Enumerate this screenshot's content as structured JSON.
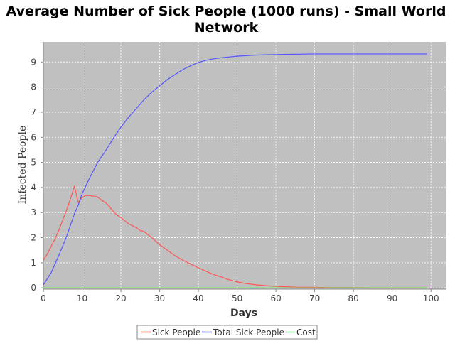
{
  "chart_data": {
    "type": "line",
    "title_lines": [
      "Average Number of Sick People (1000 runs) - Small World",
      "Network"
    ],
    "xlabel": "Days",
    "ylabel": "Infected People",
    "xlim": [
      0,
      104
    ],
    "ylim": [
      -0.05,
      9.8
    ],
    "xticks": [
      0,
      10,
      20,
      30,
      40,
      50,
      60,
      70,
      80,
      90,
      100
    ],
    "yticks": [
      0,
      1,
      2,
      3,
      4,
      5,
      6,
      7,
      8,
      9
    ],
    "grid": true,
    "legend_position": "bottom",
    "plot_background": "#c0c0c0",
    "series": [
      {
        "name": "Sick People",
        "color": "#ff5555",
        "x": [
          0,
          1,
          2,
          3,
          4,
          5,
          6,
          7,
          8,
          9,
          10,
          11,
          12,
          13,
          14,
          15,
          16,
          17,
          18,
          19,
          20,
          22,
          24,
          25,
          26,
          28,
          30,
          32,
          34,
          36,
          38,
          40,
          42,
          44,
          46,
          48,
          50,
          52,
          55,
          58,
          60,
          65,
          70,
          75,
          80,
          85,
          90,
          95,
          99
        ],
        "y": [
          1.1,
          1.35,
          1.65,
          1.95,
          2.3,
          2.7,
          3.1,
          3.55,
          4.05,
          3.4,
          3.6,
          3.68,
          3.68,
          3.65,
          3.62,
          3.5,
          3.4,
          3.25,
          3.05,
          2.9,
          2.8,
          2.55,
          2.4,
          2.28,
          2.24,
          2.0,
          1.72,
          1.5,
          1.28,
          1.1,
          0.95,
          0.8,
          0.66,
          0.53,
          0.43,
          0.32,
          0.24,
          0.18,
          0.12,
          0.08,
          0.06,
          0.03,
          0.02,
          0.01,
          0.01,
          0.0,
          0.0,
          0.0,
          0.0
        ]
      },
      {
        "name": "Total Sick People",
        "color": "#5555ff",
        "x": [
          0,
          2,
          4,
          6,
          8,
          9,
          10,
          12,
          14,
          16,
          18,
          20,
          22,
          24,
          26,
          28,
          30,
          32,
          34,
          36,
          38,
          40,
          42,
          44,
          46,
          48,
          50,
          54,
          58,
          62,
          66,
          70,
          80,
          90,
          99
        ],
        "y": [
          0.12,
          0.6,
          1.3,
          2.05,
          2.95,
          3.3,
          3.75,
          4.4,
          5.0,
          5.45,
          5.95,
          6.4,
          6.8,
          7.15,
          7.5,
          7.8,
          8.05,
          8.3,
          8.5,
          8.7,
          8.85,
          8.98,
          9.07,
          9.13,
          9.17,
          9.2,
          9.23,
          9.27,
          9.29,
          9.3,
          9.31,
          9.32,
          9.32,
          9.32,
          9.32
        ]
      },
      {
        "name": "Cost",
        "color": "#55ff55",
        "x": [
          0,
          99
        ],
        "y": [
          0,
          0
        ]
      }
    ]
  }
}
